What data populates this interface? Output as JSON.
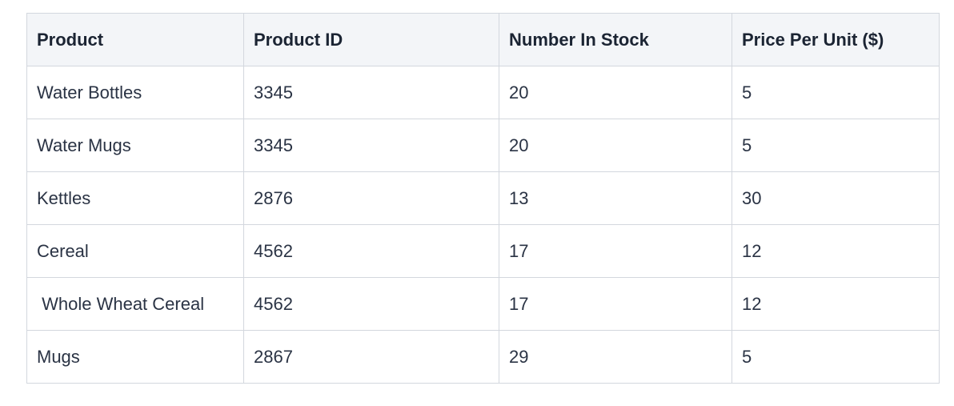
{
  "table": {
    "headers": [
      "Product",
      "Product ID",
      "Number In Stock",
      "Price Per Unit ($)"
    ],
    "rows": [
      [
        "Water Bottles",
        "3345",
        "20",
        "5"
      ],
      [
        "Water Mugs",
        "3345",
        "20",
        "5"
      ],
      [
        "Kettles",
        "2876",
        "13",
        "30"
      ],
      [
        "Cereal",
        "4562",
        "17",
        "12"
      ],
      [
        " Whole Wheat Cereal",
        "4562",
        "17",
        "12"
      ],
      [
        "Mugs",
        "2867",
        "29",
        "5"
      ]
    ]
  }
}
